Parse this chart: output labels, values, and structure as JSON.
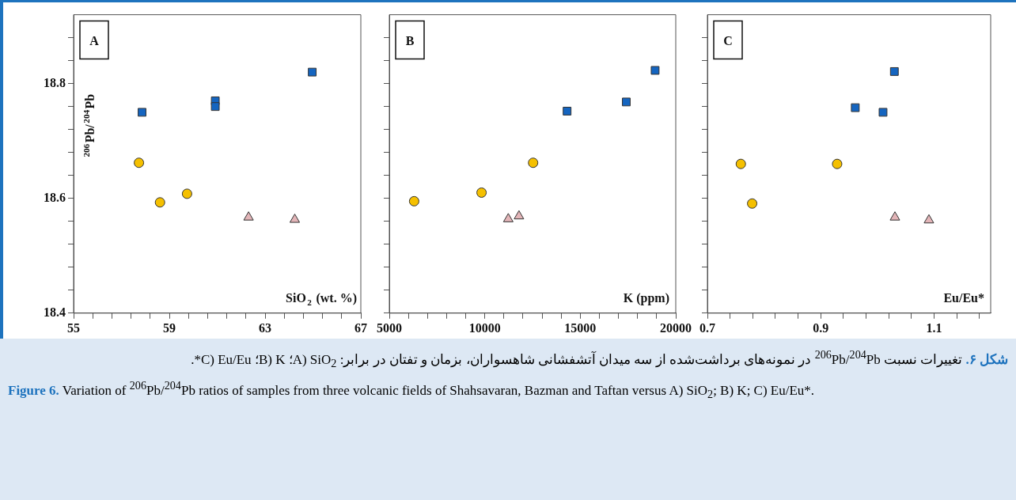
{
  "chart_data": [
    {
      "type": "scatter",
      "xlabel": "SiO$_{2}$ (wt. %)",
      "ylabel": "$^{206}$Pb/$^{204}$Pb",
      "annotations": [
        "A"
      ],
      "grid": false,
      "legend": false,
      "xlim": [
        55,
        67
      ],
      "xticks": [
        55,
        {
          "value": 55.8,
          "label": null
        },
        {
          "value": 56.6,
          "label": null
        },
        {
          "value": 57.4,
          "label": null
        },
        {
          "value": 58.2,
          "label": null
        },
        59,
        {
          "value": 59.8,
          "label": null
        },
        {
          "value": 60.6,
          "label": null
        },
        {
          "value": 61.4,
          "label": null
        },
        {
          "value": 62.2,
          "label": null
        },
        63,
        {
          "value": 63.8,
          "label": null
        },
        {
          "value": 64.6,
          "label": null
        },
        {
          "value": 65.4,
          "label": null
        },
        {
          "value": 66.2,
          "label": null
        },
        67
      ],
      "ylim": [
        18.4,
        18.92
      ],
      "yticks": [
        18.4,
        {
          "value": 18.44,
          "label": null
        },
        {
          "value": 18.48,
          "label": null
        },
        {
          "value": 18.52,
          "label": null
        },
        {
          "value": 18.56,
          "label": null
        },
        18.6,
        {
          "value": 18.64,
          "label": null
        },
        {
          "value": 18.68,
          "label": null
        },
        {
          "value": 18.72,
          "label": null
        },
        {
          "value": 18.76,
          "label": null
        },
        18.8,
        {
          "value": 18.84,
          "label": null
        },
        {
          "value": 18.88,
          "label": null
        }
      ],
      "series": [
        {
          "color": "#1565c0",
          "marker": "square",
          "x": [
            57.86,
            60.92,
            60.92,
            64.97
          ],
          "values": [
            18.75,
            18.77,
            18.76,
            18.82
          ]
        },
        {
          "color": "#f5c000",
          "marker": "circle",
          "x": [
            57.73,
            58.61,
            59.74
          ],
          "values": [
            18.662,
            18.593,
            18.608
          ]
        },
        {
          "color": "#e3b5b8",
          "marker": "triangle",
          "x": [
            62.31,
            64.24
          ],
          "values": [
            18.567,
            18.563
          ]
        }
      ]
    },
    {
      "type": "scatter",
      "xlabel": "K (ppm)",
      "annotations": [
        "B"
      ],
      "grid": false,
      "legend": false,
      "tick_labels": "x",
      "xlim": [
        5000,
        20000
      ],
      "xticks": [
        5000,
        {
          "value": 6000,
          "label": null
        },
        {
          "value": 7000,
          "label": null
        },
        {
          "value": 8000,
          "label": null
        },
        {
          "value": 9000,
          "label": null
        },
        10000,
        {
          "value": 11000,
          "label": null
        },
        {
          "value": 12000,
          "label": null
        },
        {
          "value": 13000,
          "label": null
        },
        {
          "value": 14000,
          "label": null
        },
        15000,
        {
          "value": 16000,
          "label": null
        },
        {
          "value": 17000,
          "label": null
        },
        {
          "value": 18000,
          "label": null
        },
        {
          "value": 19000,
          "label": null
        },
        20000
      ],
      "ylim": [
        18.4,
        18.92
      ],
      "yticks": [
        18.4,
        {
          "value": 18.44,
          "label": null
        },
        {
          "value": 18.48,
          "label": null
        },
        {
          "value": 18.52,
          "label": null
        },
        {
          "value": 18.56,
          "label": null
        },
        18.6,
        {
          "value": 18.64,
          "label": null
        },
        {
          "value": 18.68,
          "label": null
        },
        {
          "value": 18.72,
          "label": null
        },
        {
          "value": 18.76,
          "label": null
        },
        18.8,
        {
          "value": 18.84,
          "label": null
        },
        {
          "value": 18.88,
          "label": null
        }
      ],
      "series": [
        {
          "color": "#1565c0",
          "marker": "square",
          "x": [
            14310,
            17410,
            18920
          ],
          "values": [
            18.752,
            18.768,
            18.823
          ]
        },
        {
          "color": "#f5c000",
          "marker": "circle",
          "x": [
            6300,
            9830,
            12530
          ],
          "values": [
            18.595,
            18.61,
            18.662
          ]
        },
        {
          "color": "#e3b5b8",
          "marker": "triangle",
          "x": [
            11230,
            11790
          ],
          "values": [
            18.564,
            18.569
          ]
        }
      ]
    },
    {
      "type": "scatter",
      "xlabel": "Eu/Eu*",
      "annotations": [
        "C"
      ],
      "grid": false,
      "legend": false,
      "tick_labels": "x",
      "xlim": [
        0.7,
        1.2
      ],
      "xticks": [
        0.7,
        {
          "value": 0.74,
          "label": null
        },
        {
          "value": 0.78,
          "label": null
        },
        {
          "value": 0.82,
          "label": null
        },
        {
          "value": 0.86,
          "label": null
        },
        0.9,
        {
          "value": 0.94,
          "label": null
        },
        {
          "value": 0.98,
          "label": null
        },
        {
          "value": 1.02,
          "label": null
        },
        {
          "value": 1.06,
          "label": null
        },
        1.1,
        {
          "value": 1.14,
          "label": null
        },
        {
          "value": 1.18,
          "label": null
        }
      ],
      "ylim": [
        18.4,
        18.92
      ],
      "yticks": [
        18.4,
        {
          "value": 18.44,
          "label": null
        },
        {
          "value": 18.48,
          "label": null
        },
        {
          "value": 18.52,
          "label": null
        },
        {
          "value": 18.56,
          "label": null
        },
        18.6,
        {
          "value": 18.64,
          "label": null
        },
        {
          "value": 18.68,
          "label": null
        },
        {
          "value": 18.72,
          "label": null
        },
        {
          "value": 18.76,
          "label": null
        },
        18.8,
        {
          "value": 18.84,
          "label": null
        },
        {
          "value": 18.88,
          "label": null
        }
      ],
      "series": [
        {
          "color": "#1565c0",
          "marker": "square",
          "x": [
            1.03,
            0.961,
            1.01
          ],
          "values": [
            18.821,
            18.758,
            18.75
          ]
        },
        {
          "color": "#f5c000",
          "marker": "circle",
          "x": [
            0.759,
            0.779,
            0.929
          ],
          "values": [
            18.66,
            18.591,
            18.66
          ]
        },
        {
          "color": "#e3b5b8",
          "marker": "triangle",
          "x": [
            1.031,
            1.091
          ],
          "values": [
            18.567,
            18.562
          ]
        }
      ]
    },
    {
      "type": "other",
      "annotations": [
        "شکل ۶.",
        "تغییرات نسبت $^{206}$Pb/$^{204}$Pb در نمونه‌های برداشت‌شده از سه میدان آتشفشانی شاهسواران، بزمان و تفتان در برابر: A) SiO$_{2}$؛ B) K؛ C) Eu/Eu*.",
        "Figure 6.",
        "Variation of $^{206}$Pb/$^{204}$Pb ratios of samples from three volcanic fields of Shahsavaran, Bazman and Taftan versus A) SiO$_{2}$; B) K; C) Eu/Eu*."
      ]
    }
  ]
}
